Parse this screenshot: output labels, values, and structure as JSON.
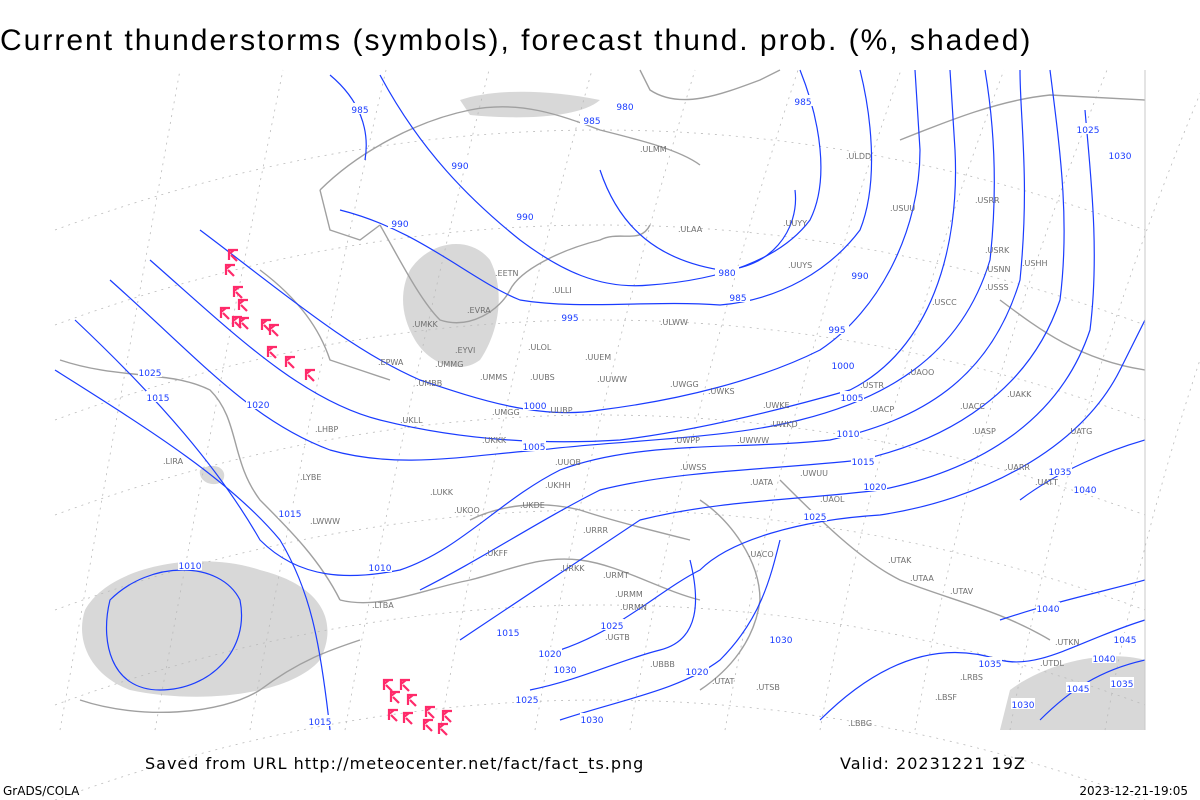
{
  "title": "Current thunderstorms (symbols), forecast thund. prob. (%, shaded)",
  "footer": {
    "saved_from": "Saved from URL http://meteocenter.net/fact/fact_ts.png",
    "valid": "Valid: 20231221 19Z",
    "software": "GrADS/COLA",
    "generated": "2023-12-21-19:05"
  },
  "colors": {
    "isobar": "#1a3cff",
    "coast": "#a0a0a0",
    "shading": "#d8d8d8",
    "thunderstorm": "#ff2a6a",
    "station": "#707070"
  },
  "isobar_labels": [
    "985",
    "980",
    "985",
    "985",
    "990",
    "990",
    "990",
    "980",
    "985",
    "990",
    "995",
    "995",
    "1000",
    "1000",
    "1005",
    "1005",
    "1010",
    "1015",
    "1020",
    "1025",
    "1025",
    "1015",
    "1020",
    "1015",
    "1010",
    "1010",
    "1015",
    "1020",
    "1025",
    "1030",
    "1025",
    "1030",
    "1020",
    "1030",
    "1035",
    "1035",
    "1040",
    "1025",
    "1030",
    "1040",
    "1045",
    "1040",
    "1045",
    "1035",
    "1030",
    "1015"
  ],
  "stations": [
    "ULMM",
    "ULAA",
    "ULOL",
    "UUEM",
    "ULLI",
    "EETN",
    "EVRA",
    "UMKK",
    "EYVI",
    "UMMG",
    "UMMS",
    "UUBS",
    "UMGG",
    "UUBP",
    "UKLL",
    "UKKK",
    "UUOB",
    "UKHH",
    "UKDE",
    "UKOO",
    "LUKK",
    "UKFF",
    "URKK",
    "URRR",
    "URMT",
    "URMM",
    "URMN",
    "UWWW",
    "UWKS",
    "UWKE",
    "UWKD",
    "UWPP",
    "UWSS",
    "UWUU",
    "UUYY",
    "UUYS",
    "ULDD",
    "USUU",
    "USRR",
    "USRK",
    "USNN",
    "USHH",
    "USSS",
    "USCC",
    "USTR",
    "UACP",
    "UAOO",
    "UACC",
    "UAKK",
    "UASP",
    "UARR",
    "UATT",
    "UATG",
    "UATA",
    "UAOL",
    "UACO",
    "UTAK",
    "UTAA",
    "UTAV",
    "UTSB",
    "LBBG",
    "LBSF",
    "LRBS",
    "LWWW",
    "LYBE",
    "LHBP",
    "LIRA",
    "EPWA",
    "UMBB",
    "ULWW",
    "UWGG",
    "UUWW",
    "LTBA",
    "UGTB",
    "UBBB",
    "UTAT",
    "UTDL",
    "UTKN"
  ],
  "thunderstorm_count_visible": 22
}
